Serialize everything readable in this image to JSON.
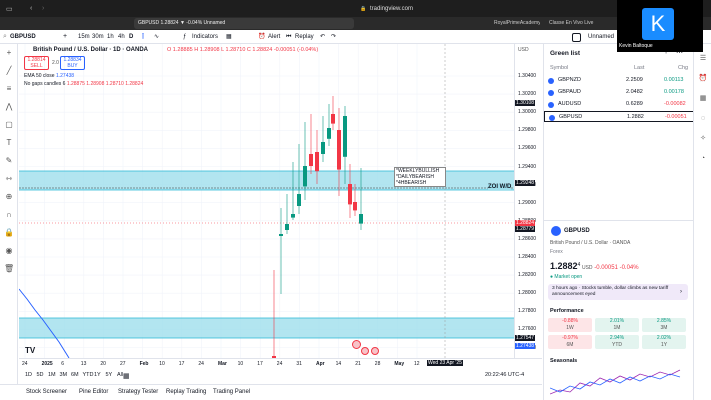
{
  "browser": {
    "url": "tradingview.com",
    "tabs": [
      {
        "label": "GBPUSD 1.28824 ▼ -0.04% Unnamed"
      },
      {
        "label": "RoyalPrimeAcademy"
      },
      {
        "label": "Classe En Vivo Live"
      }
    ]
  },
  "overlay": {
    "avatar_letter": "K",
    "caption": "Kevin Baltoque"
  },
  "header": {
    "symbol": "GBPUSD",
    "intervals": [
      "15m",
      "30m",
      "1h",
      "4h",
      "D"
    ],
    "active_interval": "D",
    "indicators_label": "Indicators",
    "alert_label": "Alert",
    "replay_label": "Replay",
    "layout_name": "Unnamed"
  },
  "chart": {
    "instrument": "British Pound / U.S. Dollar · 1D · OANDA",
    "ohlc": "O 1.28885  H 1.28908  L 1.28710  C 1.28824  -0.00051 (-0.04%)",
    "sell_price": "1.28814",
    "sell_label": "SELL",
    "spread": "2.0",
    "buy_price": "1.28834",
    "buy_label": "BUY",
    "ema_label": "EMA 50 close",
    "ema_value": "1.27438",
    "gaps_label": "No gaps candles 6",
    "gaps_values": "1.28875  1.28908  1.28710  1.28824",
    "annotation_lines": [
      "*WEEKLYBULLISH",
      "*DAILYBEARISH",
      "*4HBEARISH"
    ],
    "zoi_label": "ZOI W/D",
    "currency": "USD",
    "tv_logo": "TV",
    "crosshair_date": "Wed 23 Apr '25",
    "clock": "20:22:46 UTC-4",
    "price_ticks": [
      "1.30400",
      "1.30200",
      "1.30000",
      "1.29800",
      "1.29600",
      "1.29400",
      "1.29200",
      "1.29000",
      "1.28800",
      "1.28600",
      "1.28400",
      "1.28200",
      "1.28000",
      "1.27800",
      "1.27600",
      "1.27400"
    ],
    "price_tags": [
      "1.30108",
      "1.29248",
      "1.28824",
      "1.28779",
      "1.27547",
      "1.27438"
    ],
    "time_ticks": [
      "24",
      "2025",
      "6",
      "13",
      "20",
      "27",
      "Feb",
      "10",
      "17",
      "24",
      "Mar",
      "10",
      "17",
      "24",
      "31",
      "Apr",
      "14",
      "21",
      "28",
      "May",
      "12"
    ],
    "ranges": [
      "1D",
      "5D",
      "1M",
      "3M",
      "6M",
      "YTD",
      "1Y",
      "5Y",
      "All"
    ]
  },
  "bottom_tabs": [
    "Stock Screener",
    "Pine Editor",
    "Strategy Tester",
    "Replay Trading",
    "Trading Panel"
  ],
  "watchlist": {
    "title": "Green list",
    "columns": [
      "Symbol",
      "Last",
      "Chg"
    ],
    "rows": [
      {
        "symbol": "GBPNZD",
        "last": "2.2509",
        "chg": "0.00113",
        "color": "#089981"
      },
      {
        "symbol": "GBPAUD",
        "last": "2.0482",
        "chg": "0.00178",
        "color": "#089981"
      },
      {
        "symbol": "AUDUSD",
        "last": "0.6289",
        "chg": "-0.00082",
        "color": "#f23645"
      },
      {
        "symbol": "GBPUSD",
        "last": "1.2882",
        "chg": "-0.00051",
        "color": "#f23645"
      }
    ]
  },
  "details": {
    "symbol": "GBPUSD",
    "name": "British Pound / U.S. Dollar · OANDA",
    "type": "Forex",
    "price": "1.2882",
    "price_sup": "4",
    "currency": "USD",
    "change": "-0.00051",
    "change_pct": "-0.04%",
    "market_status": "Market open",
    "news": "3 hours ago · Stocks tumble, dollar climbs as new tariff announcement eyed",
    "performance_label": "Performance",
    "perf": [
      {
        "value": "-0.88%",
        "period": "1W",
        "color": "#f23645"
      },
      {
        "value": "2.01%",
        "period": "1M",
        "color": "#089981"
      },
      {
        "value": "2.85%",
        "period": "3M",
        "color": "#089981"
      },
      {
        "value": "-0.97%",
        "period": "6M",
        "color": "#f23645"
      },
      {
        "value": "2.94%",
        "period": "YTD",
        "color": "#089981"
      },
      {
        "value": "2.02%",
        "period": "1Y",
        "color": "#089981"
      }
    ],
    "seasonals_label": "Seasonals"
  },
  "colors": {
    "zone": "#9fdfec",
    "zone_border": "#29b6d4",
    "up": "#089981",
    "down": "#f23645",
    "ema": "#2962ff"
  }
}
